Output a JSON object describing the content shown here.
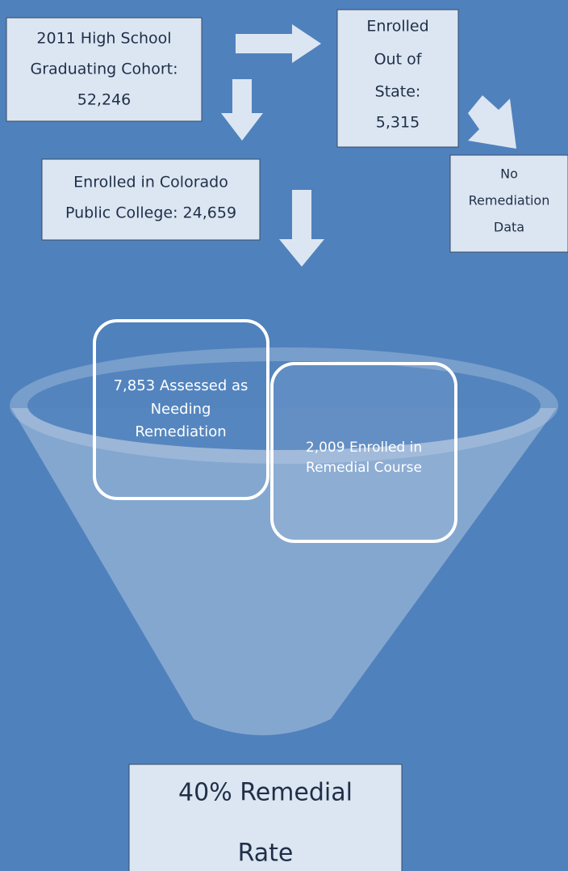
{
  "nodes": [
    {
      "id": "cohort",
      "lines": [
        "2011 High School",
        "Graduating Cohort:",
        "52,246"
      ]
    },
    {
      "id": "out-of-state",
      "lines": [
        "Enrolled",
        "Out of",
        "State:",
        "5,315"
      ]
    },
    {
      "id": "colorado",
      "lines": [
        "Enrolled in Colorado",
        "Public College: 24,659"
      ]
    },
    {
      "id": "no-data",
      "lines": [
        "No",
        "Remediation",
        "Data"
      ]
    },
    {
      "id": "assessed",
      "lines": [
        "7,853 Assessed as",
        "Needing",
        "Remediation"
      ]
    },
    {
      "id": "enrolled-remedial",
      "lines": [
        "2,009 Enrolled in",
        "Remedial Course"
      ]
    },
    {
      "id": "rate",
      "lines": [
        "40% Remedial",
        "Rate"
      ]
    }
  ]
}
